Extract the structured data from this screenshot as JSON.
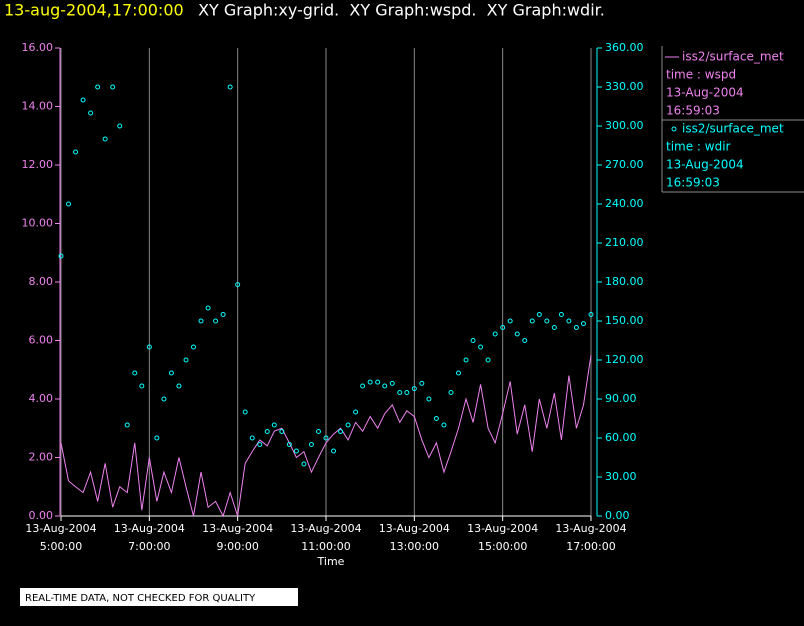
{
  "chart_data": {
    "type": "line-scatter",
    "title": "13-aug-2004,17:00:00",
    "subtitle": " XY Graph:xy-grid.  XY Graph:wspd.  XY Graph:wdir.",
    "xlabel": "Time",
    "note": "REAL-TIME DATA, NOT CHECKED FOR QUALITY",
    "grid": true,
    "x": [
      5,
      5.17,
      5.33,
      5.5,
      5.67,
      5.83,
      6,
      6.17,
      6.33,
      6.5,
      6.67,
      6.83,
      7,
      7.17,
      7.33,
      7.5,
      7.67,
      7.83,
      8,
      8.17,
      8.33,
      8.5,
      8.67,
      8.83,
      9,
      9.17,
      9.33,
      9.5,
      9.67,
      9.83,
      10,
      10.17,
      10.33,
      10.5,
      10.67,
      10.83,
      11,
      11.17,
      11.33,
      11.5,
      11.67,
      11.83,
      12,
      12.17,
      12.33,
      12.5,
      12.67,
      12.83,
      13,
      13.17,
      13.33,
      13.5,
      13.67,
      13.83,
      14,
      14.17,
      14.33,
      14.5,
      14.67,
      14.83,
      15,
      15.17,
      15.33,
      15.5,
      15.67,
      15.83,
      16,
      16.17,
      16.33,
      16.5,
      16.67,
      16.83,
      17
    ],
    "xlim": [
      5,
      17
    ],
    "xticks": [
      {
        "value": 5,
        "label": "13-Aug-2004\n5:00:00"
      },
      {
        "value": 7,
        "label": "13-Aug-2004\n7:00:00"
      },
      {
        "value": 9,
        "label": "13-Aug-2004\n9:00:00"
      },
      {
        "value": 11,
        "label": "13-Aug-2004\n11:00:00"
      },
      {
        "value": 13,
        "label": "13-Aug-2004\n13:00:00"
      },
      {
        "value": 15,
        "label": "13-Aug-2004\n15:00:00"
      },
      {
        "value": 17,
        "label": "13-Aug-2004\n17:00:00"
      }
    ],
    "ylim": [
      0,
      16
    ],
    "yticks": [
      {
        "value": 0,
        "label": "0.00"
      },
      {
        "value": 2,
        "label": "2.00"
      },
      {
        "value": 4,
        "label": "4.00"
      },
      {
        "value": 6,
        "label": "6.00"
      },
      {
        "value": 8,
        "label": "8.00"
      },
      {
        "value": 10,
        "label": "10.00"
      },
      {
        "value": 12,
        "label": "12.00"
      },
      {
        "value": 14,
        "label": "14.00"
      },
      {
        "value": 16,
        "label": "16.00"
      }
    ],
    "y2lim": [
      0,
      360
    ],
    "y2ticks": [
      {
        "value": 0,
        "label": "0.00"
      },
      {
        "value": 30,
        "label": "30.00"
      },
      {
        "value": 60,
        "label": "60.00"
      },
      {
        "value": 90,
        "label": "90.00"
      },
      {
        "value": 120,
        "label": "120.00"
      },
      {
        "value": 150,
        "label": "150.00"
      },
      {
        "value": 180,
        "label": "180.00"
      },
      {
        "value": 210,
        "label": "210.00"
      },
      {
        "value": 240,
        "label": "240.00"
      },
      {
        "value": 270,
        "label": "270.00"
      },
      {
        "value": 300,
        "label": "300.00"
      },
      {
        "value": 330,
        "label": "330.00"
      },
      {
        "value": 360,
        "label": "360.00"
      }
    ],
    "series": [
      {
        "name": "iss2/surface_met",
        "legend_info": [
          "time : wspd",
          "13-Aug-2004",
          "16:59:03"
        ],
        "color": "#ee82ee",
        "mark": "line",
        "values": [
          2.5,
          1.2,
          1.0,
          0.8,
          1.5,
          0.5,
          1.8,
          0.3,
          1.0,
          0.8,
          2.5,
          0.2,
          2.0,
          0.5,
          1.5,
          0.8,
          2.0,
          1.0,
          0.0,
          1.5,
          0.3,
          0.5,
          0.0,
          0.8,
          0.0,
          1.8,
          2.2,
          2.6,
          2.4,
          2.9,
          3.0,
          2.5,
          2.0,
          2.2,
          1.5,
          2.0,
          2.5,
          2.8,
          3.0,
          2.6,
          3.2,
          2.9,
          3.4,
          3.0,
          3.5,
          3.8,
          3.2,
          3.6,
          3.4,
          2.6,
          2.0,
          2.5,
          1.5,
          2.2,
          3.0,
          4.0,
          3.2,
          4.5,
          3.0,
          2.5,
          3.5,
          4.6,
          2.8,
          3.8,
          2.2,
          4.0,
          3.0,
          4.2,
          2.6,
          4.8,
          3.0,
          3.8,
          5.5
        ]
      },
      {
        "name": "iss2/surface_met",
        "legend_info": [
          "time : wdir",
          "13-Aug-2004",
          "16:59:03"
        ],
        "color": "#00ffff",
        "mark": "circle",
        "axis": "y2",
        "values": [
          200,
          240,
          280,
          320,
          310,
          330,
          290,
          330,
          300,
          70,
          110,
          100,
          130,
          60,
          90,
          110,
          100,
          120,
          130,
          150,
          160,
          150,
          155,
          330,
          178,
          80,
          60,
          55,
          65,
          70,
          65,
          55,
          50,
          40,
          55,
          65,
          60,
          50,
          65,
          70,
          80,
          100,
          103,
          103,
          100,
          102,
          95,
          95,
          98,
          102,
          90,
          75,
          70,
          95,
          110,
          120,
          135,
          130,
          120,
          140,
          145,
          150,
          140,
          135,
          150,
          155,
          150,
          145,
          155,
          150,
          145,
          148,
          155
        ]
      }
    ]
  }
}
